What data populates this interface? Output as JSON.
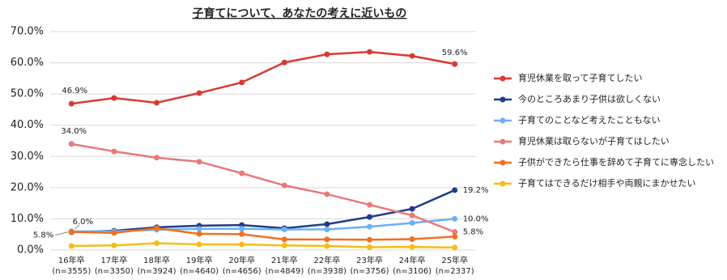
{
  "chart_data": {
    "type": "line",
    "title": "子育てについて、あなたの考えに近いもの",
    "categories": [
      "16年卒",
      "17年卒",
      "18年卒",
      "19年卒",
      "20年卒",
      "21年卒",
      "22年卒",
      "23年卒",
      "24年卒",
      "25年卒"
    ],
    "sample_sizes": [
      "(n=3555)",
      "(n=3350)",
      "(n=3924)",
      "(n=4640)",
      "(n=4656)",
      "(n=4849)",
      "(n=3938)",
      "(n=3756)",
      "(n=3106)",
      "(n=2337)"
    ],
    "ylim": [
      0,
      70
    ],
    "yticks": [
      {
        "value": 0,
        "label": "0.0%"
      },
      {
        "value": 10,
        "label": "10.0%"
      },
      {
        "value": 20,
        "label": "20.0%"
      },
      {
        "value": 30,
        "label": "30.0%"
      },
      {
        "value": 40,
        "label": "40.0%"
      },
      {
        "value": 50,
        "label": "50.0%"
      },
      {
        "value": 60,
        "label": "60.0%"
      },
      {
        "value": 70,
        "label": "70.0%"
      }
    ],
    "grid": true,
    "legend": "right",
    "series": [
      {
        "name": "育児休業を取って子育てしたい",
        "color": "#d93a30",
        "values": [
          46.9,
          48.7,
          47.2,
          50.3,
          53.7,
          60.1,
          62.7,
          63.5,
          62.2,
          59.6
        ],
        "value_labels": [
          "46.9%",
          null,
          null,
          null,
          null,
          null,
          null,
          null,
          null,
          "59.6%"
        ]
      },
      {
        "name": "今のところあまり子供は欲しくない",
        "color": "#1f3c88",
        "values": [
          5.7,
          6.2,
          7.3,
          7.8,
          8.0,
          7.0,
          8.3,
          10.6,
          13.2,
          19.2
        ],
        "value_labels": [
          null,
          null,
          null,
          null,
          null,
          null,
          null,
          null,
          null,
          "19.2%"
        ]
      },
      {
        "name": "子育てのことなど考えたこともない",
        "color": "#6cb0f4",
        "values": [
          6.0,
          6.0,
          6.5,
          6.8,
          6.8,
          6.6,
          6.6,
          7.5,
          8.7,
          10.0
        ],
        "value_labels": [
          "6.0%",
          null,
          null,
          null,
          null,
          null,
          null,
          null,
          null,
          "10.0%"
        ]
      },
      {
        "name": "育児休業は取らないが子育てはしたい",
        "color": "#e8797a",
        "values": [
          34.0,
          31.6,
          29.6,
          28.3,
          24.6,
          20.7,
          17.9,
          14.5,
          11.1,
          5.8
        ],
        "value_labels": [
          "34.0%",
          null,
          null,
          null,
          null,
          null,
          null,
          null,
          null,
          "5.8%"
        ]
      },
      {
        "name": "子供ができたら仕事を辞めて子育てに専念したい",
        "color": "#f07020",
        "values": [
          5.8,
          5.5,
          7.0,
          5.2,
          5.1,
          3.4,
          3.4,
          3.3,
          3.5,
          4.3
        ],
        "value_labels": [
          "5.8%",
          null,
          null,
          null,
          null,
          null,
          null,
          null,
          null,
          null
        ]
      },
      {
        "name": "子育てはできるだけ相手や両親にまかせたい",
        "color": "#f6bd16",
        "values": [
          1.3,
          1.5,
          2.2,
          1.8,
          1.8,
          1.5,
          1.3,
          0.9,
          1.0,
          0.8
        ],
        "value_labels": [
          null,
          null,
          null,
          null,
          null,
          null,
          null,
          null,
          null,
          null
        ]
      }
    ]
  }
}
